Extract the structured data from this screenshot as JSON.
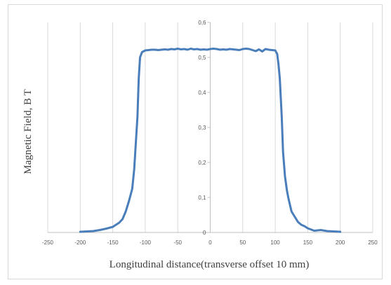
{
  "chart_data": {
    "type": "line",
    "title": "",
    "xlabel": "Longitudinal distance(transverse offset 10 mm)",
    "ylabel": "Magnetic Field, B T",
    "xlim": [
      -250,
      250
    ],
    "ylim": [
      0,
      0.6
    ],
    "x_ticks": [
      -250,
      -200,
      -150,
      -100,
      -50,
      0,
      50,
      100,
      150,
      200,
      250
    ],
    "x_tick_labels": [
      "-250",
      "-200",
      "-150",
      "-100",
      "-50",
      "0",
      "50",
      "100",
      "150",
      "200",
      "250"
    ],
    "y_ticks": [
      0,
      0.1,
      0.2,
      0.3,
      0.4,
      0.5,
      0.6
    ],
    "y_tick_labels": [
      "0",
      "0,1",
      "0,2",
      "0,3",
      "0,4",
      "0,5",
      "0,6"
    ],
    "grid": "vertical",
    "legend": "none",
    "color": "#4a7ebb",
    "series": [
      {
        "x": [
          -200,
          -190,
          -180,
          -170,
          -160,
          -150,
          -145,
          -140,
          -135,
          -130,
          -125,
          -120,
          -117,
          -115,
          -112,
          -110,
          -108,
          -105,
          -100,
          -95,
          -90,
          -85,
          -80,
          -75,
          -70,
          -65,
          -60,
          -55,
          -50,
          -45,
          -40,
          -35,
          -30,
          -25,
          -20,
          -15,
          -10,
          -5,
          0,
          5,
          10,
          15,
          20,
          25,
          30,
          35,
          40,
          45,
          50,
          55,
          60,
          65,
          70,
          75,
          80,
          85,
          90,
          95,
          100,
          103,
          105,
          107,
          110,
          112,
          115,
          118,
          120,
          125,
          130,
          135,
          140,
          145,
          150,
          160,
          170,
          180,
          190,
          200
        ],
        "y": [
          0.002,
          0.003,
          0.004,
          0.007,
          0.011,
          0.016,
          0.022,
          0.028,
          0.038,
          0.06,
          0.09,
          0.125,
          0.18,
          0.24,
          0.33,
          0.44,
          0.5,
          0.515,
          0.52,
          0.521,
          0.522,
          0.522,
          0.521,
          0.522,
          0.523,
          0.522,
          0.524,
          0.523,
          0.525,
          0.523,
          0.524,
          0.522,
          0.525,
          0.523,
          0.524,
          0.522,
          0.523,
          0.522,
          0.524,
          0.525,
          0.524,
          0.522,
          0.523,
          0.522,
          0.524,
          0.523,
          0.522,
          0.521,
          0.524,
          0.525,
          0.524,
          0.521,
          0.518,
          0.523,
          0.517,
          0.524,
          0.522,
          0.521,
          0.52,
          0.51,
          0.48,
          0.44,
          0.33,
          0.23,
          0.16,
          0.12,
          0.1,
          0.06,
          0.045,
          0.03,
          0.022,
          0.018,
          0.012,
          0.005,
          0.007,
          0.004,
          0.003,
          0.002
        ]
      }
    ]
  }
}
